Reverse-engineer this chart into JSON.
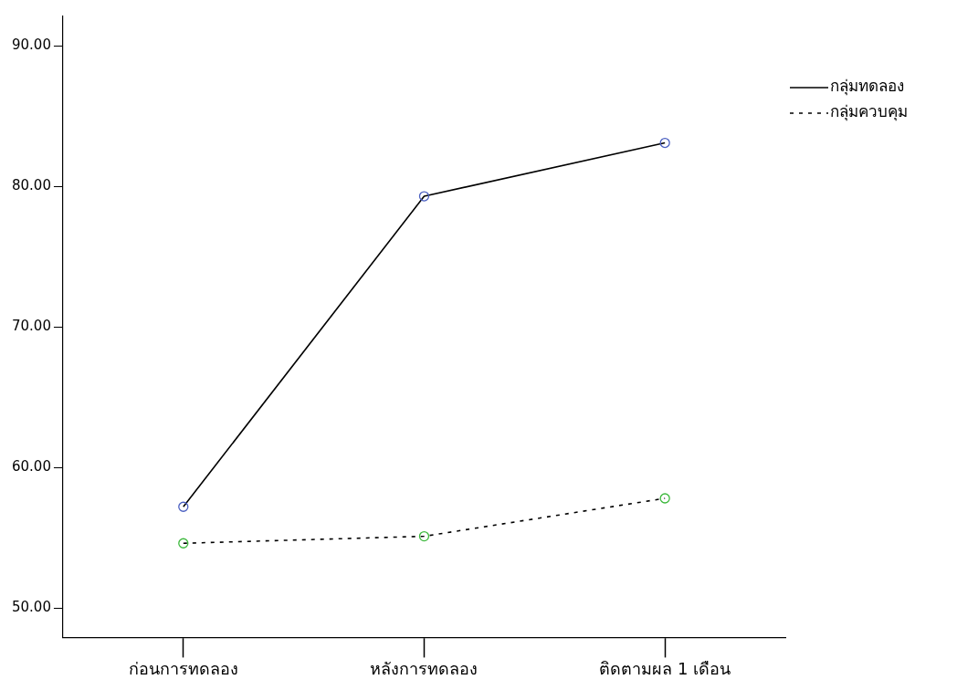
{
  "chart_data": {
    "type": "line",
    "categories": [
      "ก่อนการทดลอง",
      "หลังการทดลอง",
      "ติดตามผล 1 เดือน"
    ],
    "series": [
      {
        "name": "กลุ่มทดลอง",
        "color": "#000000",
        "colors": [
          "#4a5fc1",
          "#4a5fc1",
          "#4a5fc1"
        ],
        "line_style": "solid",
        "values": [
          57.2,
          79.3,
          83.1
        ]
      },
      {
        "name": "กลุ่มควบคุม",
        "color": "#000000",
        "colors": [
          "#3cb83c",
          "#3cb83c",
          "#3cb83c"
        ],
        "line_style": "dashed",
        "values": [
          54.6,
          55.1,
          57.8
        ]
      }
    ],
    "ylim": [
      47.9,
      92.1
    ],
    "yticks": [
      {
        "value": 50,
        "label": "50.00"
      },
      {
        "value": 60,
        "label": "60.00"
      },
      {
        "value": 70,
        "label": "70.00"
      },
      {
        "value": 80,
        "label": "80.00"
      },
      {
        "value": 90,
        "label": "90.00"
      }
    ],
    "grid": false,
    "legend": "top right",
    "marker": "circle"
  }
}
